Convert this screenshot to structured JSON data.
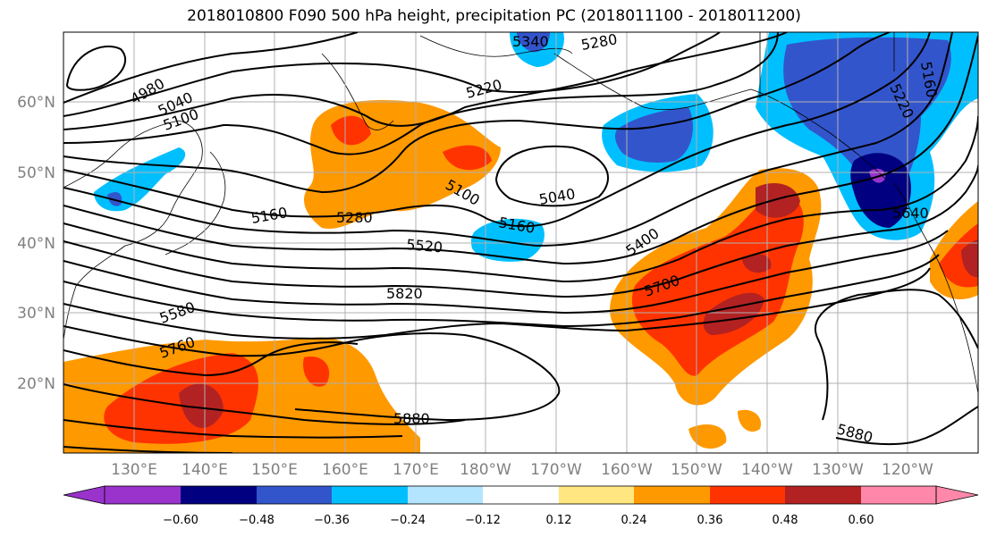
{
  "title": "2018010800 F090 500 hPa height, precipitation PC (2018011100 - 2018011200)",
  "map": {
    "lat_labels": [
      "60°N",
      "50°N",
      "40°N",
      "30°N",
      "20°N"
    ],
    "lon_labels": [
      "130°E",
      "140°E",
      "150°E",
      "160°E",
      "170°E",
      "180°W",
      "170°W",
      "160°W",
      "150°W",
      "140°W",
      "130°W",
      "120°W"
    ],
    "contour_labels": [
      "4980",
      "5040",
      "5100",
      "5220",
      "5280",
      "5340",
      "5160",
      "5280",
      "5520",
      "5580",
      "5760",
      "5820",
      "5100",
      "5160",
      "5040",
      "5400",
      "5700",
      "5880",
      "5880",
      "5640",
      "5160",
      "5220"
    ],
    "fill_colors": {
      "dark_orange_red": "#ff3300",
      "orange": "#ff9900",
      "yellow": "#ffe680",
      "brick": "#b22222",
      "light_blue": "#b3e5ff",
      "cyan": "#00bfff",
      "blue": "#3355cc",
      "navy": "#000080",
      "purple": "#9933cc"
    }
  },
  "colorbar": {
    "ticks": [
      "−0.60",
      "−0.48",
      "−0.36",
      "−0.24",
      "−0.12",
      "0.12",
      "0.24",
      "0.36",
      "0.48",
      "0.60"
    ],
    "colors": [
      "#9933cc",
      "#000080",
      "#3355cc",
      "#00bfff",
      "#b3e5ff",
      "#ffffff",
      "#ffe680",
      "#ff9900",
      "#ff3300",
      "#b22222",
      "#ff88aa"
    ]
  }
}
